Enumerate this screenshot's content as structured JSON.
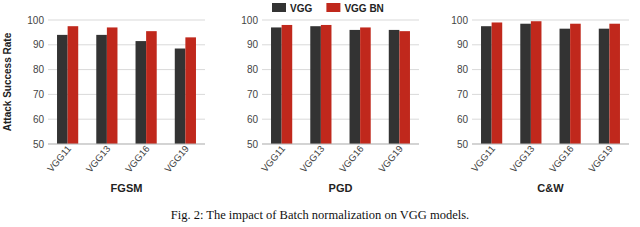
{
  "chart_data": [
    {
      "type": "bar",
      "title": "FGSM",
      "y_label": "Attack Success Rate",
      "categories": [
        "VGG11",
        "VGG13",
        "VGG16",
        "VGG19"
      ],
      "series": [
        {
          "name": "VGG",
          "color": "#333333",
          "values": [
            94,
            94,
            91.5,
            88.5
          ]
        },
        {
          "name": "VGG BN",
          "color": "#c0281c",
          "values": [
            97.5,
            97,
            95.5,
            93
          ]
        }
      ],
      "ylim": [
        50,
        100
      ],
      "yticks": [
        50,
        60,
        70,
        80,
        90,
        100
      ],
      "grid": true,
      "legend": "top"
    },
    {
      "type": "bar",
      "title": "PGD",
      "categories": [
        "VGG11",
        "VGG13",
        "VGG16",
        "VGG19"
      ],
      "series": [
        {
          "name": "VGG",
          "color": "#333333",
          "values": [
            97,
            97.5,
            96,
            96
          ]
        },
        {
          "name": "VGG BN",
          "color": "#c0281c",
          "values": [
            98,
            98,
            97,
            95.5
          ]
        }
      ],
      "ylim": [
        50,
        100
      ],
      "yticks": [
        50,
        60,
        70,
        80,
        90,
        100
      ],
      "grid": true
    },
    {
      "type": "bar",
      "title": "C&W",
      "categories": [
        "VGG11",
        "VGG13",
        "VGG16",
        "VGG19"
      ],
      "series": [
        {
          "name": "VGG",
          "color": "#333333",
          "values": [
            97.5,
            98.5,
            96.5,
            96.5
          ]
        },
        {
          "name": "VGG BN",
          "color": "#c0281c",
          "values": [
            99,
            99.5,
            98.5,
            98.5
          ]
        }
      ],
      "ylim": [
        50,
        100
      ],
      "yticks": [
        50,
        60,
        70,
        80,
        90,
        100
      ],
      "grid": true
    }
  ],
  "caption": "Fig. 2: The impact of Batch normalization on VGG models."
}
